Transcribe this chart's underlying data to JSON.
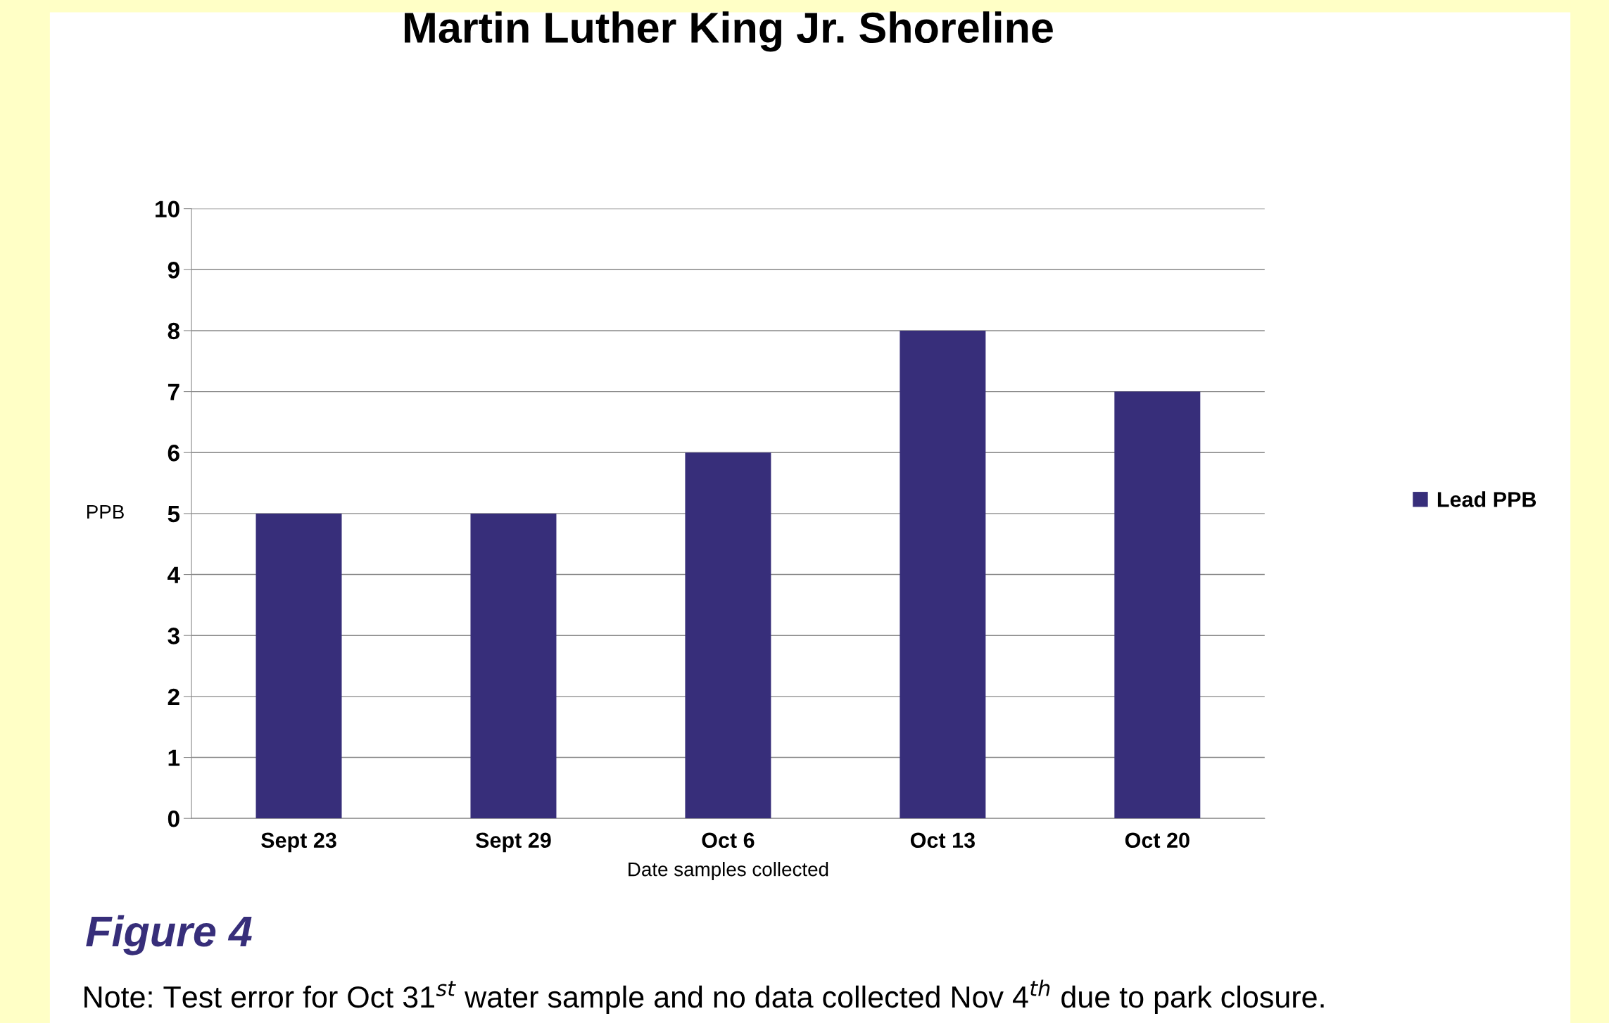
{
  "chart_data": {
    "type": "bar",
    "title": "Martin Luther King Jr. Shoreline",
    "xlabel": "Date samples collected",
    "ylabel": "PPB",
    "categories": [
      "Sept 23",
      "Sept 29",
      "Oct 6",
      "Oct 13",
      "Oct 20"
    ],
    "series": [
      {
        "name": "Lead PPB",
        "color": "#372e7a",
        "values": [
          5,
          5,
          6,
          8,
          7
        ]
      }
    ],
    "ylim": [
      0,
      10
    ],
    "yticks": [
      0,
      1,
      2,
      3,
      4,
      5,
      6,
      7,
      8,
      9,
      10
    ],
    "grid": "y",
    "legend": "right",
    "annotations": [
      "Figure 4",
      "Note: Test error for Oct 31$^{st}$ water sample and no data collected Nov 4$^{th}$ due to park closure."
    ]
  }
}
